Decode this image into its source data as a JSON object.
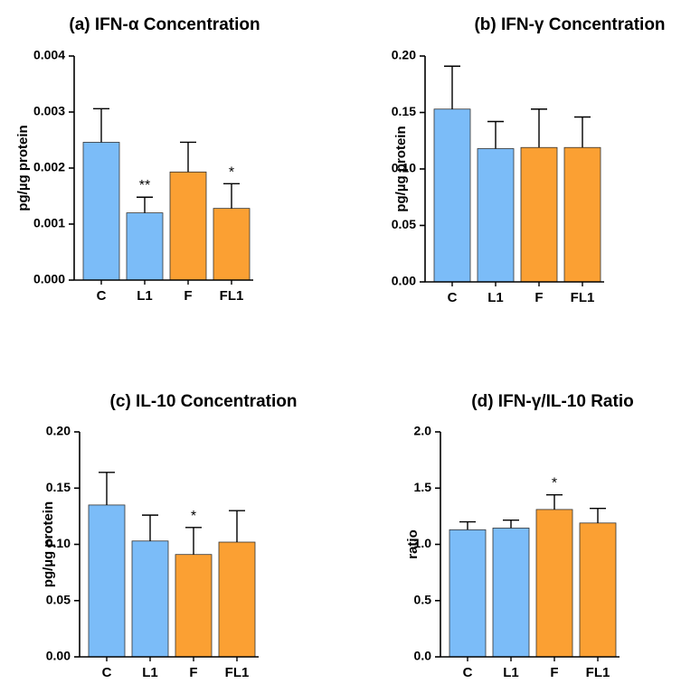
{
  "colors": {
    "control": "#7bbcf8",
    "treated": "#fba033",
    "axis": "#000000"
  },
  "chart_data": [
    {
      "type": "bar",
      "title": "(a) IFN-α Concentration",
      "ylabel": "pg/µg protein",
      "categories": [
        "C",
        "L1",
        "F",
        "FL1"
      ],
      "values": [
        0.00246,
        0.0012,
        0.00193,
        0.00128
      ],
      "errors": [
        0.0006,
        0.00028,
        0.00053,
        0.00044
      ],
      "annotations": [
        "",
        "**",
        "",
        "*"
      ],
      "ylim": [
        0,
        0.004
      ],
      "yticks": [
        0,
        0.001,
        0.002,
        0.003,
        0.004
      ],
      "ytick_labels": [
        "0.000",
        "0.001",
        "0.002",
        "0.003",
        "0.004"
      ],
      "bar_colors": [
        "control",
        "control",
        "treated",
        "treated"
      ]
    },
    {
      "type": "bar",
      "title": "(b) IFN-γ Concentration",
      "ylabel": "pg/µg protein",
      "categories": [
        "C",
        "L1",
        "F",
        "FL1"
      ],
      "values": [
        0.153,
        0.118,
        0.119,
        0.119
      ],
      "errors": [
        0.038,
        0.024,
        0.034,
        0.027
      ],
      "annotations": [
        "",
        "",
        "",
        ""
      ],
      "ylim": [
        0,
        0.2
      ],
      "yticks": [
        0,
        0.05,
        0.1,
        0.15,
        0.2
      ],
      "ytick_labels": [
        "0.00",
        "0.05",
        "0.10",
        "0.15",
        "0.20"
      ],
      "bar_colors": [
        "control",
        "control",
        "treated",
        "treated"
      ]
    },
    {
      "type": "bar",
      "title": "(c) IL-10 Concentration",
      "ylabel": "pg/µg protein",
      "categories": [
        "C",
        "L1",
        "F",
        "FL1"
      ],
      "values": [
        0.135,
        0.103,
        0.091,
        0.102
      ],
      "errors": [
        0.029,
        0.023,
        0.024,
        0.028
      ],
      "annotations": [
        "",
        "",
        "*",
        ""
      ],
      "ylim": [
        0,
        0.2
      ],
      "yticks": [
        0,
        0.05,
        0.1,
        0.15,
        0.2
      ],
      "ytick_labels": [
        "0.00",
        "0.05",
        "0.10",
        "0.15",
        "0.20"
      ],
      "bar_colors": [
        "control",
        "control",
        "treated",
        "treated"
      ]
    },
    {
      "type": "bar",
      "title": "(d) IFN-γ/IL-10 Ratio",
      "ylabel": "ratio",
      "categories": [
        "C",
        "L1",
        "F",
        "FL1"
      ],
      "values": [
        1.13,
        1.145,
        1.31,
        1.19
      ],
      "errors": [
        0.07,
        0.07,
        0.13,
        0.13
      ],
      "annotations": [
        "",
        "",
        "*",
        ""
      ],
      "ylim": [
        0,
        2
      ],
      "yticks": [
        0,
        0.5,
        1,
        1.5,
        2
      ],
      "ytick_labels": [
        "0.0",
        "0.5",
        "1.0",
        "1.5",
        "2.0"
      ],
      "bar_colors": [
        "control",
        "control",
        "treated",
        "treated"
      ]
    }
  ]
}
